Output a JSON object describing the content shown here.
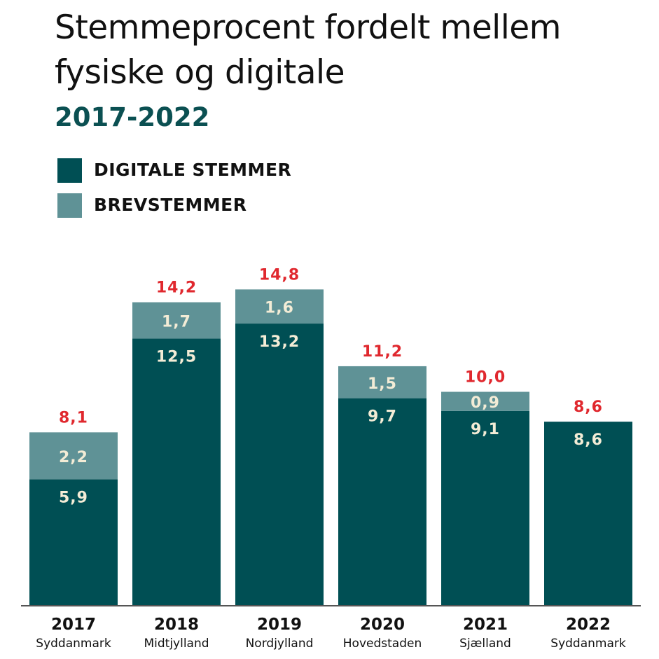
{
  "chart_data": {
    "type": "bar",
    "stacked": true,
    "title": "Stemmeprocent fordelt mellem fysiske og digitale",
    "subtitle": "2017-2022",
    "categories": [
      "2017",
      "2018",
      "2019",
      "2020",
      "2021",
      "2022"
    ],
    "category_sublabels": [
      "Syddanmark",
      "Midtjylland",
      "Nordjylland",
      "Hovedstaden",
      "Sjælland",
      "Syddanmark"
    ],
    "series": [
      {
        "name": "DIGITALE STEMMER",
        "color": "#004f54",
        "values": [
          5.9,
          12.5,
          13.2,
          9.7,
          9.1,
          8.6
        ],
        "labels": [
          "5,9",
          "12,5",
          "13,2",
          "9,7",
          "9,1",
          "8,6"
        ]
      },
      {
        "name": "BREVSTEMMER",
        "color": "#5f9296",
        "values": [
          2.2,
          1.7,
          1.6,
          1.5,
          0.9,
          0
        ],
        "labels": [
          "2,2",
          "1,7",
          "1,6",
          "1,5",
          "0,9",
          ""
        ]
      }
    ],
    "totals": [
      8.1,
      14.2,
      14.8,
      11.2,
      10.0,
      8.6
    ],
    "total_labels": [
      "8,1",
      "14,2",
      "14,8",
      "11,2",
      "10,0",
      "8,6"
    ],
    "total_label_color": "#e0282e",
    "inner_label_color": "#f3ecd6",
    "ylim": [
      0,
      15.5
    ],
    "legend_position": "top-left",
    "grid": false
  }
}
